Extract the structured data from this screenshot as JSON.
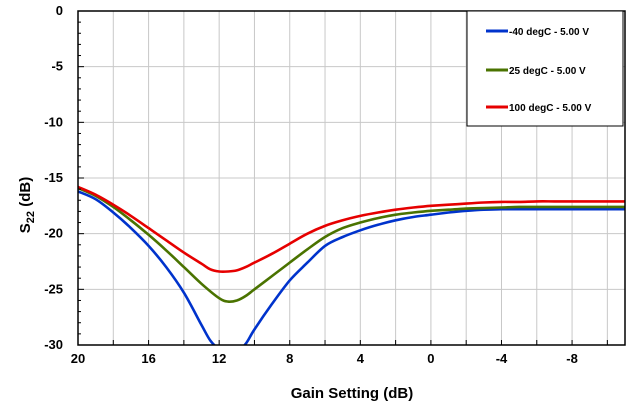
{
  "chart_data": {
    "type": "line",
    "title": "",
    "xlabel": "Gain Setting (dB)",
    "ylabel_main": "S",
    "ylabel_sub": "22",
    "ylabel_unit": " (dB)",
    "xlim": [
      20,
      -11
    ],
    "ylim": [
      -30,
      0
    ],
    "x_ticks": [
      20,
      16,
      12,
      8,
      4,
      0,
      -4,
      -8
    ],
    "x_tick_labels": [
      "20",
      "16",
      "12",
      "8",
      "4",
      "0",
      "-4",
      "-8"
    ],
    "y_ticks": [
      0,
      -5,
      -10,
      -15,
      -20,
      -25,
      -30
    ],
    "y_tick_labels": [
      "0",
      "-5",
      "-10",
      "-15",
      "-20",
      "-25",
      "-30"
    ],
    "grid": true,
    "legend_position": "top-right",
    "series": [
      {
        "name": "-40 degC - 5.00 V",
        "color": "#0033cc",
        "x": [
          20,
          19,
          18,
          17,
          16,
          15,
          14,
          13,
          12.5,
          12,
          11.5,
          11,
          10.5,
          10,
          9,
          8,
          7,
          6,
          5,
          4,
          3,
          2,
          1,
          0,
          -1,
          -2,
          -3,
          -4,
          -5,
          -6,
          -7,
          -8,
          -9,
          -10,
          -11
        ],
        "y": [
          -16.2,
          -16.9,
          -18.1,
          -19.5,
          -21.1,
          -23.0,
          -25.3,
          -28.2,
          -29.6,
          -30.4,
          -30.8,
          -30.6,
          -29.9,
          -28.6,
          -26.3,
          -24.2,
          -22.6,
          -21.1,
          -20.3,
          -19.7,
          -19.2,
          -18.8,
          -18.5,
          -18.3,
          -18.1,
          -17.95,
          -17.85,
          -17.8,
          -17.8,
          -17.8,
          -17.8,
          -17.8,
          -17.8,
          -17.8,
          -17.8
        ]
      },
      {
        "name": "25 degC - 5.00 V",
        "color": "#4a7300",
        "x": [
          20,
          19,
          18,
          17,
          16,
          15,
          14,
          13,
          12,
          11.5,
          11,
          10.5,
          10,
          9,
          8,
          7,
          6,
          5,
          4,
          3,
          2,
          1,
          0,
          -1,
          -2,
          -3,
          -4,
          -5,
          -6,
          -7,
          -8,
          -9,
          -10,
          -11
        ],
        "y": [
          -15.9,
          -16.6,
          -17.6,
          -18.8,
          -20.1,
          -21.5,
          -23.0,
          -24.5,
          -25.8,
          -26.1,
          -26.0,
          -25.6,
          -25.0,
          -23.8,
          -22.6,
          -21.4,
          -20.3,
          -19.5,
          -19.0,
          -18.6,
          -18.3,
          -18.1,
          -17.95,
          -17.85,
          -17.75,
          -17.7,
          -17.65,
          -17.6,
          -17.6,
          -17.6,
          -17.6,
          -17.6,
          -17.6,
          -17.6
        ]
      },
      {
        "name": "100 degC - 5.00 V",
        "color": "#e60000",
        "x": [
          20,
          19,
          18,
          17,
          16,
          15,
          14,
          13,
          12.5,
          12,
          11.5,
          11,
          10.5,
          10,
          9,
          8,
          7,
          6,
          5,
          4,
          3,
          2,
          1,
          0,
          -1,
          -2,
          -3,
          -4,
          -5,
          -6,
          -7,
          -8,
          -9,
          -10,
          -11
        ],
        "y": [
          -15.8,
          -16.5,
          -17.4,
          -18.4,
          -19.5,
          -20.6,
          -21.7,
          -22.7,
          -23.2,
          -23.4,
          -23.4,
          -23.3,
          -23.0,
          -22.6,
          -21.8,
          -20.9,
          -20.0,
          -19.3,
          -18.8,
          -18.4,
          -18.1,
          -17.85,
          -17.65,
          -17.5,
          -17.4,
          -17.3,
          -17.2,
          -17.15,
          -17.15,
          -17.1,
          -17.1,
          -17.1,
          -17.1,
          -17.1,
          -17.1
        ]
      }
    ]
  }
}
